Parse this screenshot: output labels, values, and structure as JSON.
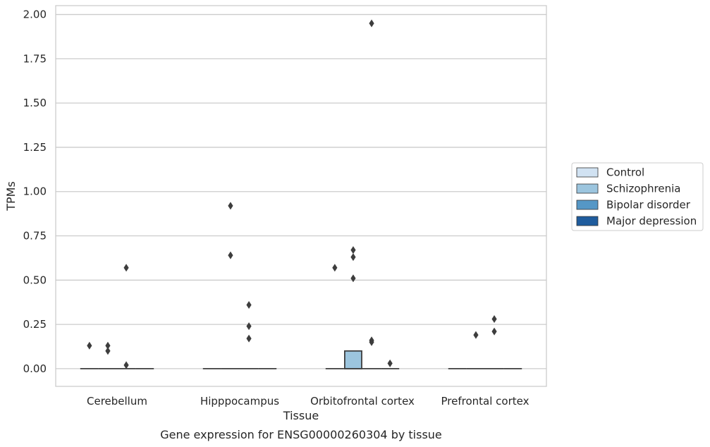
{
  "chart_data": {
    "type": "box",
    "xlabel": "Tissue",
    "ylabel": "TPMs",
    "caption": "Gene expression for ENSG00000260304 by tissue",
    "ylim": [
      -0.1,
      2.05
    ],
    "yticks": [
      "0.00",
      "0.25",
      "0.50",
      "0.75",
      "1.00",
      "1.25",
      "1.50",
      "1.75",
      "2.00"
    ],
    "grid": "horizontal",
    "legend_position": "right",
    "categories": [
      "Cerebellum",
      "Hipppocampus",
      "Orbitofrontal cortex",
      "Prefrontal cortex"
    ],
    "series": [
      {
        "name": "Control",
        "color": "#d1e2f2"
      },
      {
        "name": "Schizophrenia",
        "color": "#9cc5de"
      },
      {
        "name": "Bipolar disorder",
        "color": "#5597c6"
      },
      {
        "name": "Major depression",
        "color": "#1f5c9d"
      }
    ],
    "boxes": [
      {
        "category": 0,
        "series": 0,
        "q1": 0,
        "median": 0,
        "q3": 0,
        "outliers": [
          0.13
        ]
      },
      {
        "category": 0,
        "series": 1,
        "q1": 0,
        "median": 0,
        "q3": 0,
        "outliers": [
          0.13,
          0.1
        ]
      },
      {
        "category": 0,
        "series": 2,
        "q1": 0,
        "median": 0,
        "q3": 0,
        "outliers": [
          0.57,
          0.02
        ]
      },
      {
        "category": 0,
        "series": 3,
        "q1": 0,
        "median": 0,
        "q3": 0,
        "outliers": []
      },
      {
        "category": 1,
        "series": 0,
        "q1": 0,
        "median": 0,
        "q3": 0,
        "outliers": []
      },
      {
        "category": 1,
        "series": 1,
        "q1": 0,
        "median": 0,
        "q3": 0,
        "outliers": [
          0.92,
          0.64
        ]
      },
      {
        "category": 1,
        "series": 2,
        "q1": 0,
        "median": 0,
        "q3": 0,
        "outliers": [
          0.36,
          0.24,
          0.17
        ]
      },
      {
        "category": 1,
        "series": 3,
        "q1": 0,
        "median": 0,
        "q3": 0,
        "outliers": []
      },
      {
        "category": 2,
        "series": 0,
        "q1": 0,
        "median": 0,
        "q3": 0,
        "outliers": [
          0.57
        ]
      },
      {
        "category": 2,
        "series": 1,
        "q1": 0,
        "median": 0,
        "q3": 0.1,
        "outliers": [
          0.67,
          0.63,
          0.51
        ]
      },
      {
        "category": 2,
        "series": 2,
        "q1": 0,
        "median": 0,
        "q3": 0,
        "outliers": [
          1.95,
          0.16,
          0.15
        ]
      },
      {
        "category": 2,
        "series": 3,
        "q1": 0,
        "median": 0,
        "q3": 0,
        "outliers": [
          0.03
        ]
      },
      {
        "category": 3,
        "series": 0,
        "q1": 0,
        "median": 0,
        "q3": 0,
        "outliers": []
      },
      {
        "category": 3,
        "series": 1,
        "q1": 0,
        "median": 0,
        "q3": 0,
        "outliers": [
          0.19
        ]
      },
      {
        "category": 3,
        "series": 2,
        "q1": 0,
        "median": 0,
        "q3": 0,
        "outliers": [
          0.28,
          0.21
        ]
      },
      {
        "category": 3,
        "series": 3,
        "q1": 0,
        "median": 0,
        "q3": 0,
        "outliers": []
      }
    ]
  }
}
